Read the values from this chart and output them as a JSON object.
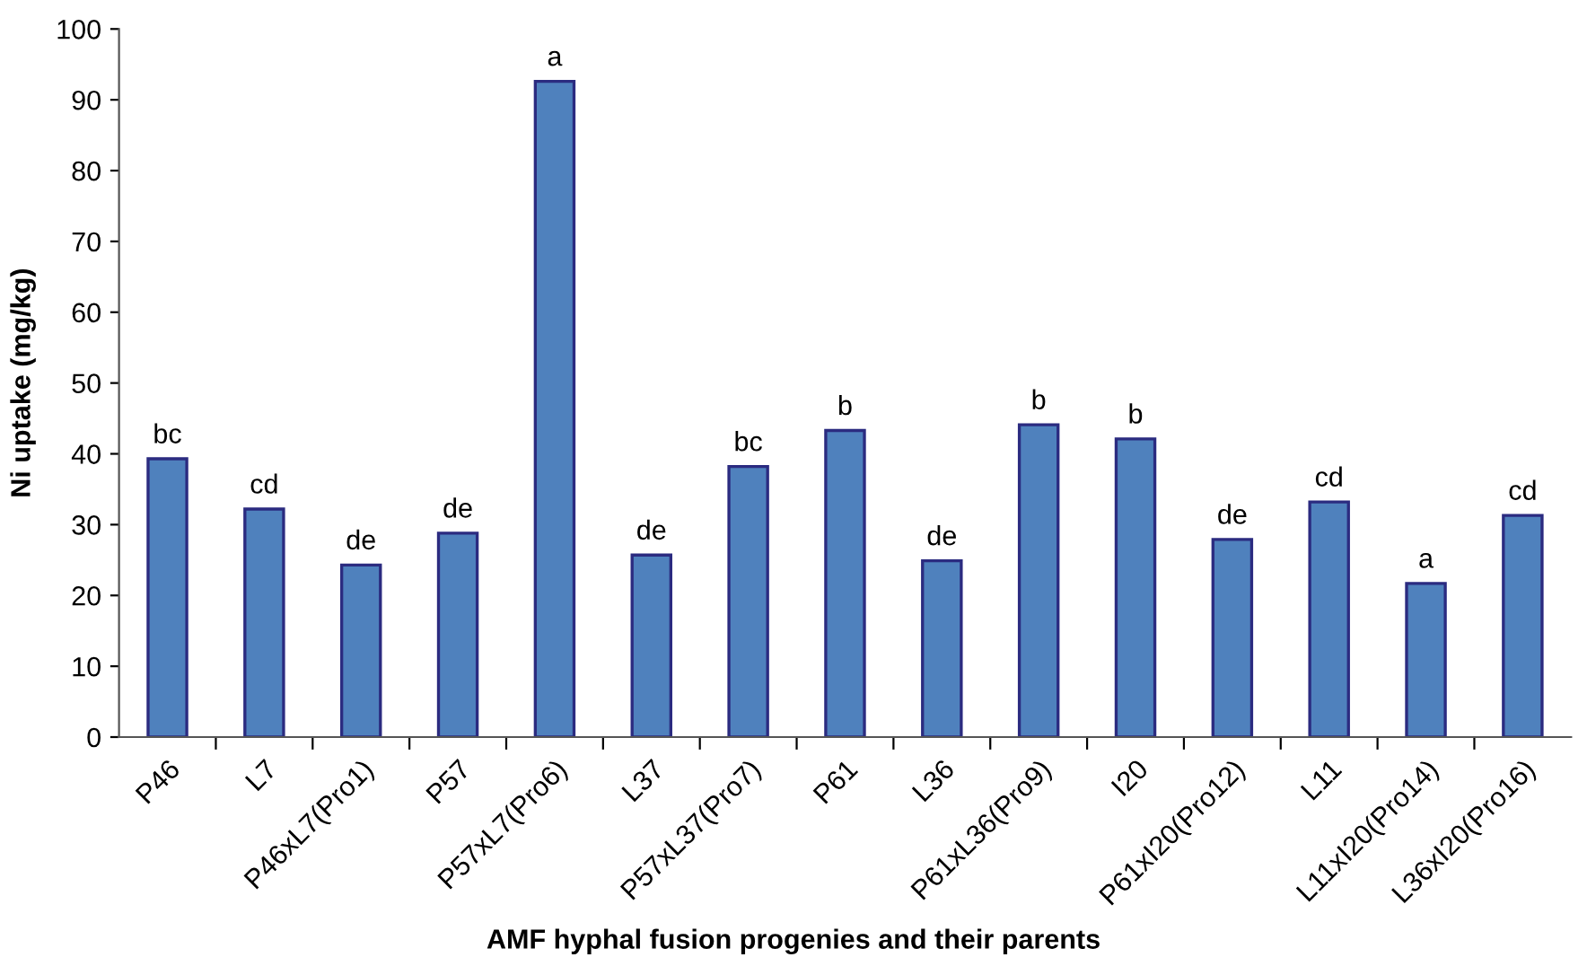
{
  "chart_data": {
    "type": "bar",
    "xlabel": "AMF hyphal fusion progenies and their parents",
    "ylabel": "Ni uptake (mg/kg)",
    "categories": [
      "P46",
      "L7",
      "P46xL7(Pro1)",
      "P57",
      "P57xL7(Pro6)",
      "L37",
      "P57xL37(Pro7)",
      "P61",
      "L36",
      "P61xL36(Pro9)",
      "I20",
      "P61xI20(Pro12)",
      "L11",
      "L11xI20(Pro14)",
      "L36xI20(Pro16)"
    ],
    "values": [
      39.3,
      32.2,
      24.3,
      28.8,
      92.6,
      25.7,
      38.2,
      43.3,
      24.9,
      44.1,
      42.1,
      27.9,
      33.2,
      21.7,
      31.3
    ],
    "color": "#4f81bd",
    "ylim": [
      0,
      100
    ],
    "yticks": [
      0,
      10,
      20,
      30,
      40,
      50,
      60,
      70,
      80,
      90,
      100
    ],
    "grid": false,
    "legend": false,
    "annotations": [
      {
        "text": "bc",
        "x": "P46",
        "y": 39.3
      },
      {
        "text": "cd",
        "x": "L7",
        "y": 32.2
      },
      {
        "text": "de",
        "x": "P46xL7(Pro1)",
        "y": 24.3
      },
      {
        "text": "de",
        "x": "P57",
        "y": 28.8
      },
      {
        "text": "a",
        "x": "P57xL7(Pro6)",
        "y": 92.6
      },
      {
        "text": "de",
        "x": "L37",
        "y": 25.7
      },
      {
        "text": "bc",
        "x": "P57xL37(Pro7)",
        "y": 38.2
      },
      {
        "text": "b",
        "x": "P61",
        "y": 43.3
      },
      {
        "text": "de",
        "x": "L36",
        "y": 24.9
      },
      {
        "text": "b",
        "x": "P61xL36(Pro9)",
        "y": 44.1
      },
      {
        "text": "b",
        "x": "I20",
        "y": 42.1
      },
      {
        "text": "de",
        "x": "P61xI20(Pro12)",
        "y": 27.9
      },
      {
        "text": "cd",
        "x": "L11",
        "y": 33.2
      },
      {
        "text": "a",
        "x": "L11xI20(Pro14)",
        "y": 21.7
      },
      {
        "text": "cd",
        "x": "L36xI20(Pro16)",
        "y": 31.3
      }
    ]
  }
}
